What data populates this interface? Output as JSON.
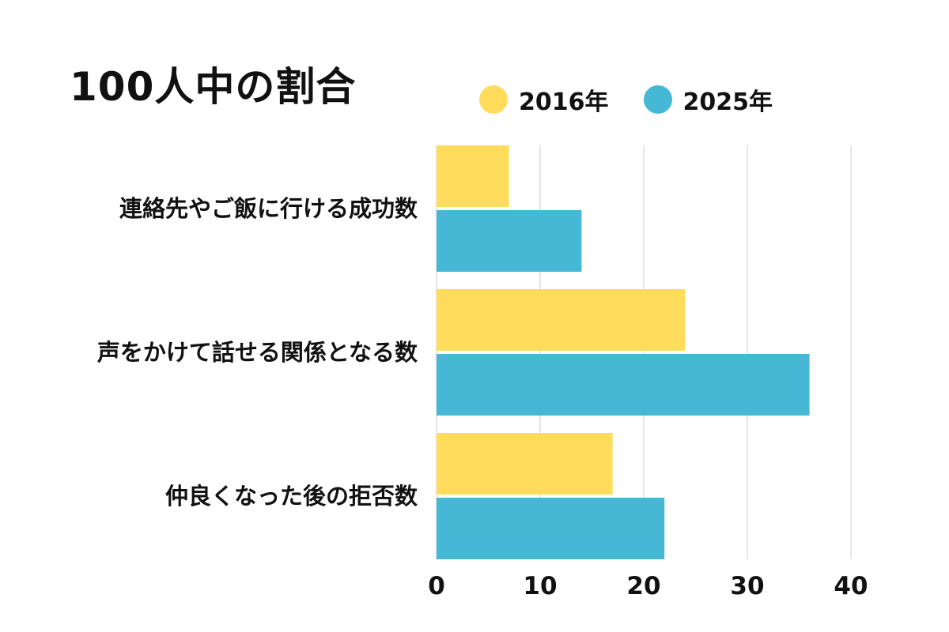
{
  "chart_data": {
    "type": "bar",
    "orientation": "horizontal",
    "title": "100人中の割合",
    "categories": [
      "連絡先やご飯に行ける成功数",
      "声をかけて話せる関係となる数",
      "仲良くなった後の拒否数"
    ],
    "series": [
      {
        "name": "2016年",
        "color": "#FFDC5C",
        "values": [
          7,
          24,
          17
        ]
      },
      {
        "name": "2025年",
        "color": "#45B8D6",
        "values": [
          14,
          36,
          22
        ]
      }
    ],
    "xticks": [
      "0",
      "10",
      "20",
      "30",
      "40"
    ],
    "xlim": [
      0,
      40
    ],
    "grid": true,
    "legend_position": "top-right",
    "grid_color": "#DDDDDD"
  }
}
